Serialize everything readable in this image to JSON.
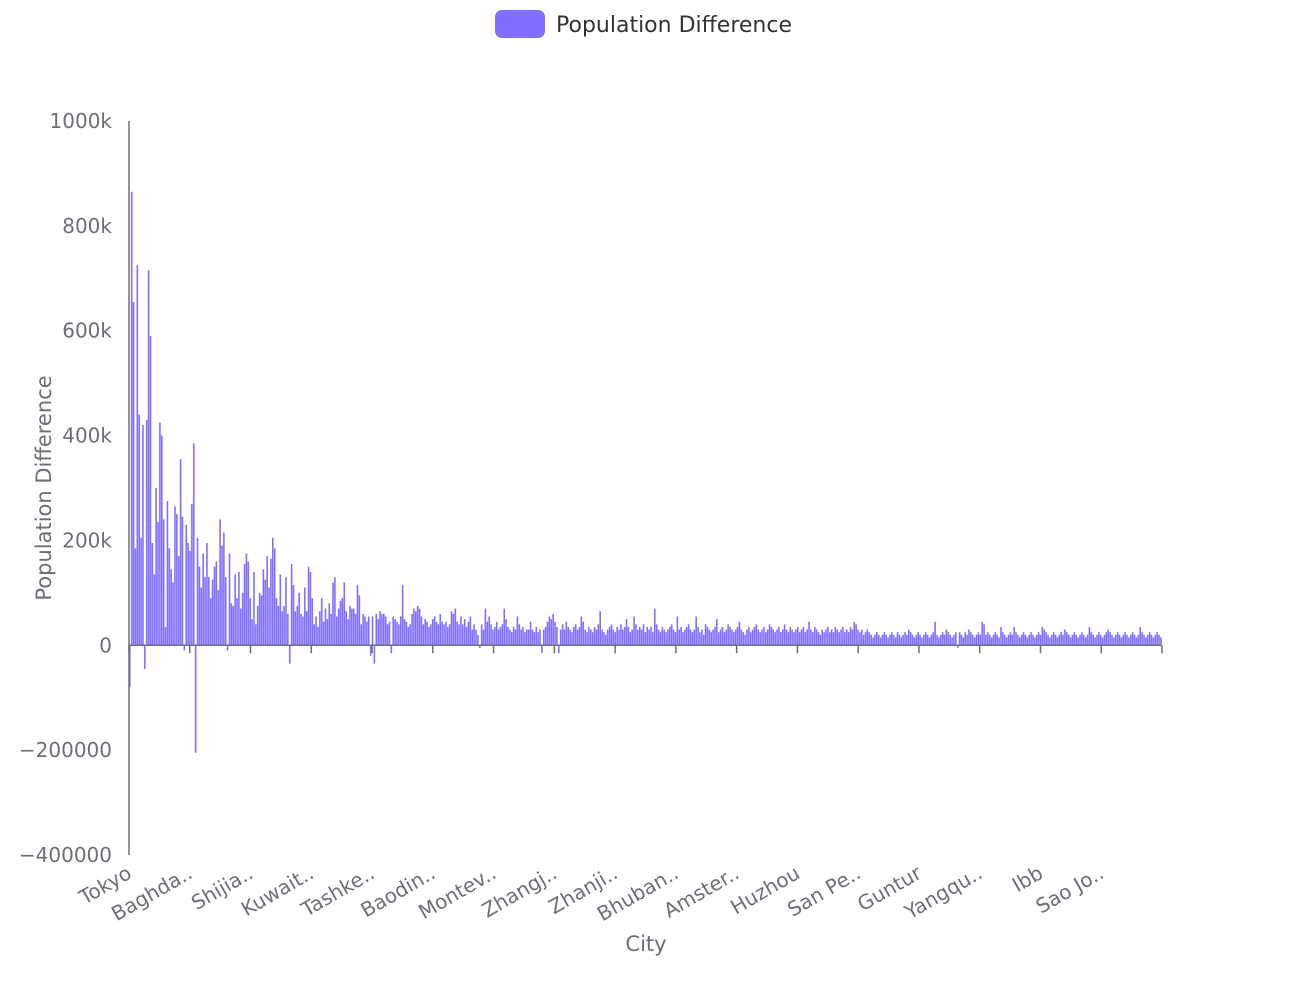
{
  "chart_data": {
    "type": "bar",
    "legend": {
      "label": "Population Difference",
      "placement": "top-center"
    },
    "xlabel": "City",
    "ylabel": "Population Difference",
    "ylim": [
      -400000,
      1000000
    ],
    "y_ticks": [
      {
        "value": 1000000,
        "label": "1000k"
      },
      {
        "value": 800000,
        "label": "800k"
      },
      {
        "value": 600000,
        "label": "600k"
      },
      {
        "value": 400000,
        "label": "400k"
      },
      {
        "value": 200000,
        "label": "200k"
      },
      {
        "value": 0,
        "label": "0"
      },
      {
        "value": -200000,
        "label": "−200000"
      },
      {
        "value": -400000,
        "label": "−400000"
      }
    ],
    "x_tick_labels": [
      "Tokyo",
      "Baghda..",
      "Shijia..",
      "Kuwait..",
      "Tashke..",
      "Baodin..",
      "Montev..",
      "Zhangj..",
      "Zhanji..",
      "Bhuban..",
      "Amster..",
      "Huzhou",
      "San Pe..",
      "Guntur",
      "Yangqu..",
      "Ibb",
      "Sao Jo.."
    ],
    "grid": false,
    "color": "#8170ff",
    "series": [
      {
        "name": "Population Difference",
        "values": [
          -80000,
          865000,
          655000,
          185000,
          725000,
          440000,
          205000,
          420000,
          -45000,
          430000,
          715000,
          590000,
          195000,
          135000,
          300000,
          235000,
          425000,
          400000,
          240000,
          35000,
          275000,
          185000,
          145000,
          120000,
          265000,
          250000,
          170000,
          355000,
          245000,
          -10000,
          230000,
          195000,
          180000,
          270000,
          385000,
          -205000,
          205000,
          150000,
          110000,
          175000,
          130000,
          195000,
          130000,
          90000,
          125000,
          150000,
          160000,
          105000,
          240000,
          190000,
          215000,
          130000,
          -10000,
          175000,
          80000,
          75000,
          135000,
          90000,
          140000,
          70000,
          100000,
          155000,
          175000,
          160000,
          90000,
          50000,
          140000,
          40000,
          75000,
          100000,
          95000,
          145000,
          125000,
          170000,
          110000,
          165000,
          205000,
          185000,
          90000,
          75000,
          135000,
          65000,
          75000,
          130000,
          60000,
          -35000,
          155000,
          115000,
          65000,
          75000,
          100000,
          60000,
          55000,
          110000,
          65000,
          150000,
          140000,
          90000,
          40000,
          55000,
          35000,
          65000,
          90000,
          45000,
          70000,
          50000,
          80000,
          60000,
          120000,
          130000,
          55000,
          70000,
          85000,
          90000,
          120000,
          65000,
          50000,
          75000,
          70000,
          70000,
          60000,
          115000,
          95000,
          40000,
          60000,
          55000,
          45000,
          55000,
          -20000,
          55000,
          -35000,
          60000,
          50000,
          65000,
          60000,
          60000,
          55000,
          40000,
          45000,
          -15000,
          55000,
          50000,
          45000,
          40000,
          55000,
          115000,
          50000,
          45000,
          35000,
          40000,
          60000,
          70000,
          65000,
          75000,
          70000,
          55000,
          40000,
          50000,
          45000,
          35000,
          40000,
          50000,
          55000,
          45000,
          40000,
          60000,
          45000,
          40000,
          45000,
          35000,
          40000,
          65000,
          60000,
          70000,
          45000,
          40000,
          55000,
          40000,
          50000,
          35000,
          45000,
          55000,
          30000,
          40000,
          30000,
          20000,
          -5000,
          40000,
          30000,
          70000,
          45000,
          55000,
          40000,
          30000,
          35000,
          45000,
          30000,
          35000,
          40000,
          70000,
          50000,
          35000,
          30000,
          25000,
          35000,
          30000,
          55000,
          40000,
          30000,
          35000,
          25000,
          30000,
          30000,
          45000,
          30000,
          25000,
          35000,
          25000,
          30000,
          -15000,
          30000,
          35000,
          45000,
          55000,
          50000,
          60000,
          45000,
          35000,
          -15000,
          30000,
          40000,
          30000,
          45000,
          35000,
          30000,
          25000,
          35000,
          40000,
          30000,
          35000,
          55000,
          45000,
          30000,
          25000,
          35000,
          30000,
          25000,
          35000,
          30000,
          40000,
          65000,
          30000,
          25000,
          20000,
          30000,
          35000,
          40000,
          30000,
          25000,
          35000,
          30000,
          40000,
          30000,
          35000,
          50000,
          35000,
          25000,
          30000,
          55000,
          40000,
          30000,
          35000,
          30000,
          40000,
          25000,
          35000,
          30000,
          35000,
          25000,
          70000,
          40000,
          30000,
          25000,
          35000,
          30000,
          25000,
          30000,
          35000,
          40000,
          30000,
          25000,
          55000,
          30000,
          35000,
          25000,
          30000,
          35000,
          40000,
          30000,
          25000,
          30000,
          55000,
          35000,
          25000,
          30000,
          20000,
          40000,
          35000,
          30000,
          25000,
          30000,
          35000,
          50000,
          25000,
          30000,
          35000,
          25000,
          30000,
          40000,
          35000,
          30000,
          25000,
          30000,
          35000,
          45000,
          30000,
          25000,
          20000,
          30000,
          35000,
          25000,
          30000,
          35000,
          40000,
          30000,
          25000,
          30000,
          35000,
          25000,
          30000,
          40000,
          35000,
          30000,
          25000,
          30000,
          35000,
          25000,
          30000,
          40000,
          30000,
          25000,
          35000,
          30000,
          25000,
          30000,
          35000,
          25000,
          30000,
          35000,
          25000,
          30000,
          45000,
          30000,
          25000,
          35000,
          30000,
          25000,
          20000,
          30000,
          25000,
          30000,
          35000,
          25000,
          30000,
          25000,
          35000,
          30000,
          25000,
          30000,
          35000,
          25000,
          30000,
          25000,
          35000,
          30000,
          45000,
          40000,
          30000,
          25000,
          30000,
          20000,
          25000,
          30000,
          25000,
          20000,
          15000,
          20000,
          25000,
          20000,
          15000,
          20000,
          25000,
          20000,
          15000,
          20000,
          25000,
          20000,
          15000,
          25000,
          20000,
          15000,
          20000,
          25000,
          20000,
          30000,
          25000,
          20000,
          15000,
          20000,
          25000,
          20000,
          15000,
          20000,
          25000,
          20000,
          15000,
          20000,
          25000,
          45000,
          20000,
          15000,
          20000,
          25000,
          20000,
          30000,
          25000,
          20000,
          15000,
          20000,
          25000,
          -5000,
          25000,
          20000,
          15000,
          25000,
          20000,
          30000,
          25000,
          20000,
          15000,
          20000,
          25000,
          20000,
          45000,
          40000,
          20000,
          25000,
          20000,
          15000,
          20000,
          25000,
          20000,
          15000,
          35000,
          25000,
          20000,
          15000,
          20000,
          25000,
          20000,
          35000,
          25000,
          20000,
          15000,
          20000,
          25000,
          20000,
          15000,
          20000,
          25000,
          20000,
          15000,
          20000,
          25000,
          20000,
          35000,
          30000,
          25000,
          20000,
          15000,
          20000,
          25000,
          20000,
          15000,
          20000,
          25000,
          20000,
          30000,
          25000,
          20000,
          15000,
          20000,
          25000,
          20000,
          15000,
          20000,
          25000,
          20000,
          15000,
          20000,
          35000,
          25000,
          20000,
          15000,
          20000,
          25000,
          20000,
          15000,
          20000,
          25000,
          30000,
          25000,
          20000,
          15000,
          20000,
          25000,
          20000,
          15000,
          20000,
          25000,
          20000,
          15000,
          20000,
          25000,
          20000,
          15000,
          20000,
          35000,
          25000,
          20000,
          15000,
          20000,
          25000,
          20000,
          15000,
          20000,
          25000,
          20000,
          15000
        ]
      }
    ]
  }
}
